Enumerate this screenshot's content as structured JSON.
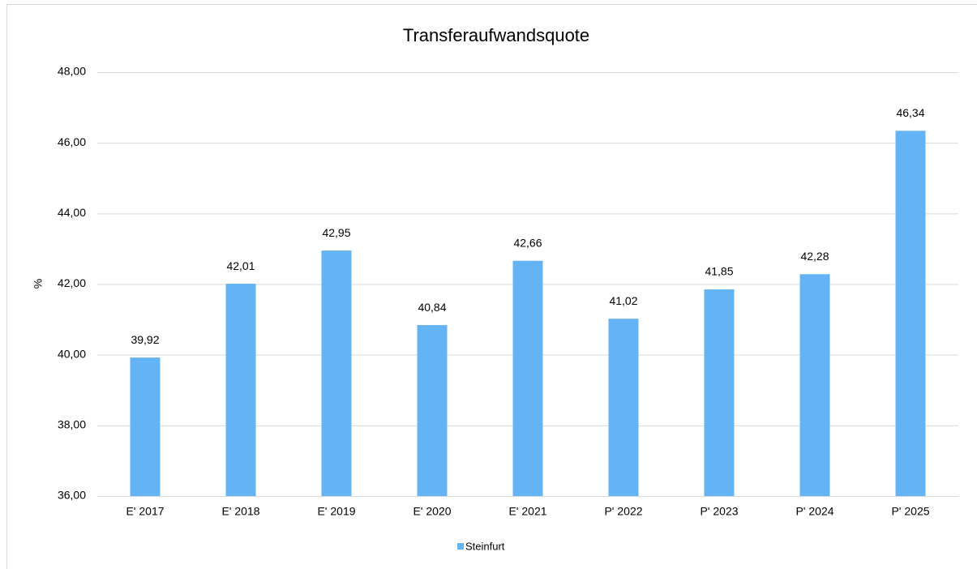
{
  "chart_data": {
    "type": "bar",
    "title": "Transferaufwandsquote",
    "ylabel": "%",
    "categories": [
      "E' 2017",
      "E' 2018",
      "E' 2019",
      "E' 2020",
      "E' 2021",
      "P' 2022",
      "P' 2023",
      "P' 2024",
      "P' 2025"
    ],
    "series": [
      {
        "name": "Steinfurt",
        "color": "#63b3f5",
        "values": [
          39.92,
          42.01,
          42.95,
          40.84,
          42.66,
          41.02,
          41.85,
          42.28,
          46.34
        ],
        "value_labels": [
          "39,92",
          "42,01",
          "42,95",
          "40,84",
          "42,66",
          "41,02",
          "41,85",
          "42,28",
          "46,34"
        ]
      }
    ],
    "ylim": [
      36,
      48
    ],
    "yticks": [
      {
        "value": 36,
        "label": "36,00"
      },
      {
        "value": 38,
        "label": "38,00"
      },
      {
        "value": 40,
        "label": "40,00"
      },
      {
        "value": 42,
        "label": "42,00"
      },
      {
        "value": 44,
        "label": "44,00"
      },
      {
        "value": 46,
        "label": "46,00"
      },
      {
        "value": 48,
        "label": "48,00"
      }
    ],
    "grid": true,
    "legend": "bottom"
  }
}
